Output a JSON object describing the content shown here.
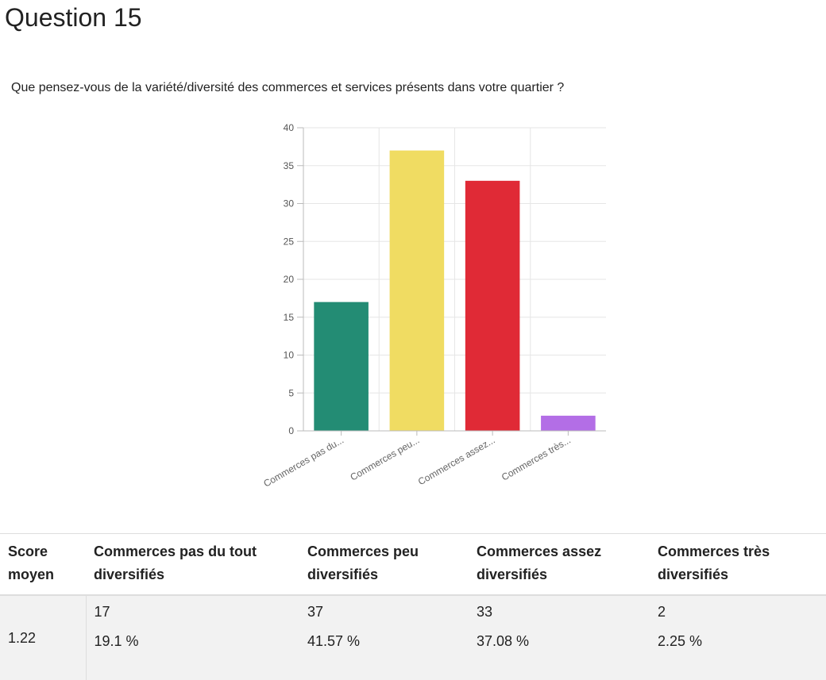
{
  "header": {
    "title": "Question 15"
  },
  "question": {
    "text": "Que pensez-vous de la variété/diversité des commerces et services présents dans votre quartier ?"
  },
  "chart_data": {
    "type": "bar",
    "categories": [
      "Commerces pas du...",
      "Commerces peu...",
      "Commerces assez...",
      "Commerces très..."
    ],
    "values": [
      17,
      37,
      33,
      2
    ],
    "colors": [
      "#238c74",
      "#f0dc62",
      "#e02a36",
      "#b36ee6"
    ],
    "ylim": [
      0,
      40
    ],
    "yticks": [
      0,
      5,
      10,
      15,
      20,
      25,
      30,
      35,
      40
    ],
    "grid": true,
    "title": "",
    "xlabel": "",
    "ylabel": ""
  },
  "table": {
    "headers": [
      "Score moyen",
      "Commerces pas du tout diversifiés",
      "Commerces peu diversifiés",
      "Commerces assez diversifiés",
      "Commerces très diversifiés"
    ],
    "score": "1.22",
    "counts": [
      "17",
      "37",
      "33",
      "2"
    ],
    "percents": [
      "19.1 %",
      "41.57 %",
      "37.08 %",
      "2.25 %"
    ]
  }
}
